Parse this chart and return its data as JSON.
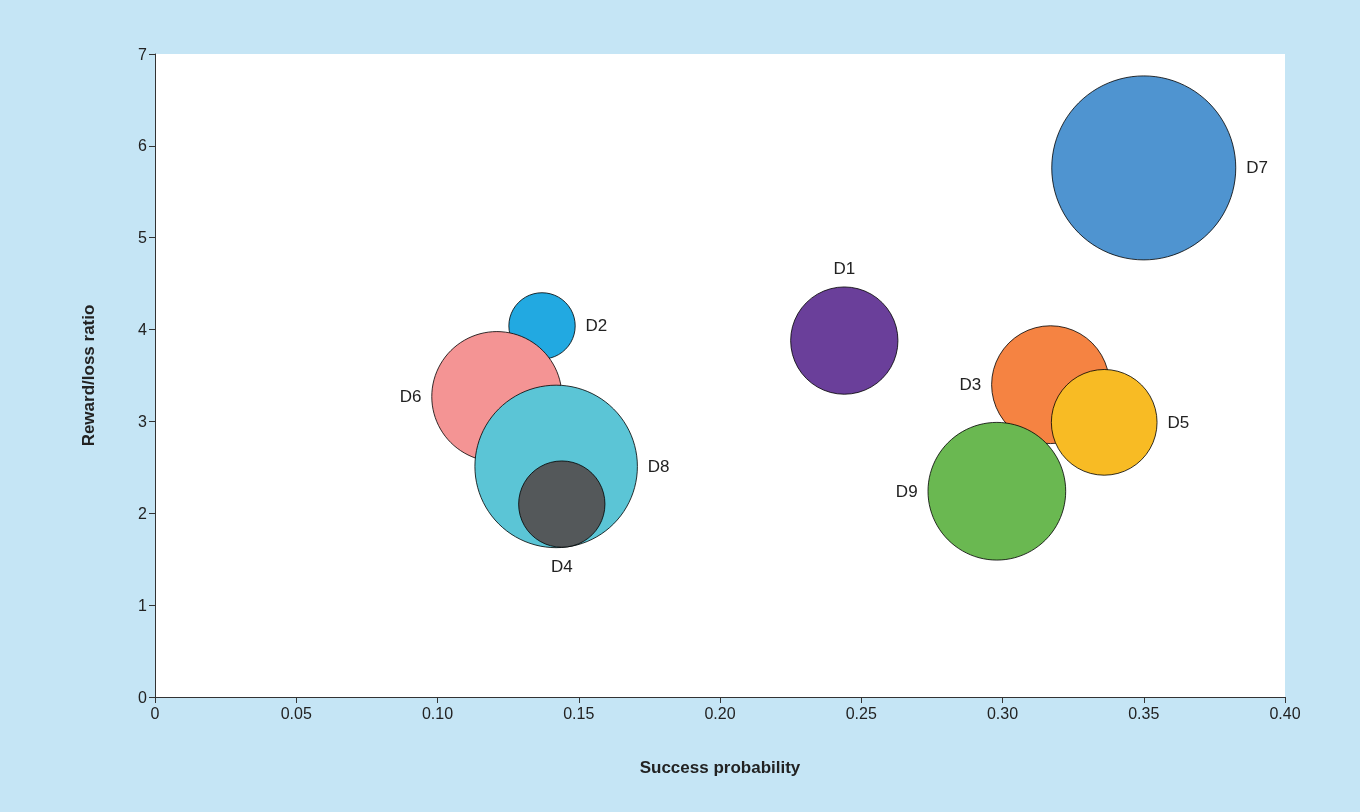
{
  "chart_data": {
    "type": "bubble",
    "xlabel": "Success probability",
    "ylabel": "Reward/loss ratio",
    "xlim": [
      0,
      0.4
    ],
    "xticks": [
      0,
      0.05,
      {
        "value": 0.1,
        "label": "0.10"
      },
      0.15,
      {
        "value": 0.2,
        "label": "0.20"
      },
      0.25,
      {
        "value": 0.3,
        "label": "0.30"
      },
      0.35,
      {
        "value": 0.4,
        "label": "0.40"
      }
    ],
    "ylim": [
      0,
      7
    ],
    "yticks": [
      0,
      1,
      2,
      3,
      4,
      5,
      6,
      7
    ],
    "grid": false,
    "legend": false,
    "series": [
      {
        "name": "D7",
        "color": "#4f94d0",
        "x": [
          0.35
        ],
        "values": [
          5.76
        ],
        "sizes": [
          1
        ]
      },
      {
        "name": "D1",
        "color": "#6a3f9a",
        "x": [
          0.244
        ],
        "values": [
          3.88
        ],
        "sizes": [
          0.34
        ]
      },
      {
        "name": "D2",
        "color": "#22a9e1",
        "x": [
          0.137
        ],
        "values": [
          4.04
        ],
        "sizes": [
          0.13
        ]
      },
      {
        "name": "D6",
        "color": "#f49494",
        "x": [
          0.121
        ],
        "values": [
          3.27
        ],
        "sizes": [
          0.5
        ]
      },
      {
        "name": "D8",
        "color": "#5bc5d6",
        "x": [
          0.142
        ],
        "values": [
          2.51
        ],
        "sizes": [
          0.78
        ]
      },
      {
        "name": "D4",
        "color": "#54585a",
        "x": [
          0.144
        ],
        "values": [
          2.1
        ],
        "sizes": [
          0.22
        ]
      },
      {
        "name": "D3",
        "color": "#f58342",
        "x": [
          0.317
        ],
        "values": [
          3.4
        ],
        "sizes": [
          0.41
        ]
      },
      {
        "name": "D9",
        "color": "#6ab851",
        "x": [
          0.298
        ],
        "values": [
          2.24
        ],
        "sizes": [
          0.56
        ]
      },
      {
        "name": "D5",
        "color": "#f8bb24",
        "x": [
          0.336
        ],
        "values": [
          2.99
        ],
        "sizes": [
          0.33
        ]
      }
    ]
  }
}
